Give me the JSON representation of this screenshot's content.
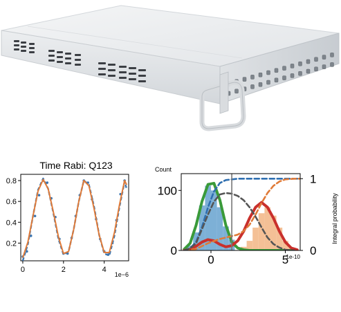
{
  "device": {
    "name": "rack-mount-controller",
    "body_color": "#e9ebed",
    "edge_color": "#c9cdd1"
  },
  "chart_data": [
    {
      "id": "rabi",
      "type": "line",
      "title": "Time Rabi: Q123",
      "xlabel": "",
      "ylabel": "",
      "x_multiplier": "1e−6",
      "xlim": [
        -0.1,
        5.2
      ],
      "ylim": [
        0.03,
        0.86
      ],
      "xticks": [
        "0",
        "2",
        "4"
      ],
      "yticks": [
        "0.2",
        "0.4",
        "0.6",
        "0.8"
      ],
      "grid": false,
      "series": [
        {
          "kind": "points",
          "color": "#3b75af",
          "x": [
            0.0,
            0.2,
            0.4,
            0.6,
            0.8,
            1.0,
            1.2,
            1.4,
            1.6,
            1.8,
            2.0,
            2.2,
            2.4,
            2.6,
            2.8,
            3.0,
            3.2,
            3.4,
            3.6,
            3.8,
            4.0,
            4.2,
            4.4,
            4.6,
            4.8,
            5.0
          ],
          "y": [
            0.07,
            0.12,
            0.27,
            0.46,
            0.66,
            0.8,
            0.78,
            0.63,
            0.45,
            0.24,
            0.1,
            0.1,
            0.25,
            0.46,
            0.66,
            0.8,
            0.78,
            0.62,
            0.43,
            0.24,
            0.12,
            0.09,
            0.2,
            0.42,
            0.67,
            0.8
          ]
        },
        {
          "kind": "dashed",
          "color": "#3b75af",
          "x": [
            0.0,
            0.25,
            0.5,
            0.75,
            1.0,
            1.25,
            1.5,
            1.75,
            2.0,
            2.25,
            2.5,
            2.75,
            3.0,
            3.25,
            3.5,
            3.75,
            4.0,
            4.25,
            4.5,
            4.75,
            5.0,
            5.1
          ],
          "y": [
            0.03,
            0.19,
            0.46,
            0.71,
            0.82,
            0.72,
            0.49,
            0.24,
            0.09,
            0.12,
            0.33,
            0.6,
            0.8,
            0.76,
            0.55,
            0.28,
            0.1,
            0.08,
            0.27,
            0.55,
            0.79,
            0.72
          ]
        },
        {
          "kind": "line",
          "color": "#e07b39",
          "x": [
            0.0,
            0.25,
            0.5,
            0.75,
            1.0,
            1.25,
            1.5,
            1.75,
            2.0,
            2.25,
            2.5,
            2.75,
            3.0,
            3.25,
            3.5,
            3.75,
            4.0,
            4.25,
            4.5,
            4.75,
            5.0,
            5.1
          ],
          "y": [
            0.06,
            0.21,
            0.46,
            0.7,
            0.81,
            0.72,
            0.5,
            0.26,
            0.1,
            0.12,
            0.33,
            0.6,
            0.8,
            0.75,
            0.53,
            0.28,
            0.11,
            0.11,
            0.3,
            0.57,
            0.8,
            0.76
          ]
        }
      ]
    },
    {
      "id": "readout-histogram",
      "type": "area",
      "title": "",
      "ylabel": "Count",
      "ylabel2": "Integral probability",
      "x_multiplier": "1e-10",
      "xlim": [
        -2.0,
        6.0
      ],
      "ylim": [
        0,
        128
      ],
      "ylim2": [
        0,
        1.07
      ],
      "xticks": [
        "0",
        "5"
      ],
      "yticks": [
        "0",
        "100"
      ],
      "yticks2": [
        "0",
        "1"
      ],
      "threshold_x": 1.4,
      "grid": false,
      "series": [
        {
          "kind": "hist",
          "color": "#6fa7d1",
          "x": [
            -1.4,
            -1.0,
            -0.6,
            -0.2,
            0.2,
            0.6,
            1.0,
            1.4
          ],
          "y": [
            8,
            30,
            75,
            108,
            100,
            72,
            40,
            18
          ]
        },
        {
          "kind": "hist",
          "color": "#f3b98b",
          "x": [
            2.2,
            2.6,
            3.0,
            3.4,
            3.8,
            4.2,
            4.6,
            5.0,
            5.4
          ],
          "y": [
            6,
            16,
            38,
            62,
            72,
            58,
            38,
            16,
            5
          ]
        },
        {
          "kind": "fit",
          "color": "#3a9a3a",
          "x": [
            -1.8,
            -1.4,
            -1.0,
            -0.6,
            -0.2,
            0.2,
            0.6,
            1.0,
            1.4,
            1.8,
            2.2,
            2.6,
            3.0,
            3.4,
            3.8,
            4.2,
            4.6,
            5.0,
            5.4,
            5.8
          ],
          "y": [
            2,
            12,
            42,
            82,
            110,
            112,
            84,
            42,
            14,
            4,
            1,
            0,
            0,
            0,
            0,
            0,
            0,
            0,
            0,
            0
          ]
        },
        {
          "kind": "fit",
          "color": "#c9302c",
          "x": [
            -1.8,
            -1.4,
            -1.0,
            -0.6,
            -0.2,
            0.2,
            0.6,
            1.0,
            1.4,
            1.8,
            2.2,
            2.6,
            3.0,
            3.4,
            3.8,
            4.2,
            4.6,
            5.0,
            5.4,
            5.8
          ],
          "y": [
            0,
            2,
            7,
            14,
            18,
            16,
            10,
            6,
            8,
            16,
            32,
            54,
            72,
            80,
            72,
            54,
            32,
            14,
            4,
            1
          ]
        },
        {
          "kind": "cumulative",
          "color": "#2f6fb0",
          "axis": "right",
          "x": [
            -1.8,
            -1.4,
            -1.0,
            -0.6,
            -0.2,
            0.2,
            0.6,
            1.0,
            1.4,
            1.8,
            2.4,
            3.0,
            4.0,
            5.0,
            6.0
          ],
          "y": [
            0.0,
            0.03,
            0.12,
            0.33,
            0.6,
            0.82,
            0.94,
            0.98,
            0.99,
            1.0,
            1.0,
            1.0,
            1.0,
            1.0,
            1.0
          ]
        },
        {
          "kind": "cumulative",
          "color": "#e07b39",
          "axis": "right",
          "x": [
            -1.8,
            -1.0,
            -0.2,
            0.6,
            1.4,
            1.8,
            2.2,
            2.6,
            3.0,
            3.4,
            3.8,
            4.2,
            4.6,
            5.0,
            5.6,
            6.0
          ],
          "y": [
            0.0,
            0.02,
            0.1,
            0.16,
            0.2,
            0.22,
            0.27,
            0.36,
            0.5,
            0.66,
            0.8,
            0.9,
            0.96,
            0.99,
            1.0,
            1.0
          ]
        },
        {
          "kind": "difference",
          "color": "#555555",
          "axis": "right",
          "x": [
            -1.8,
            -1.4,
            -1.0,
            -0.6,
            -0.2,
            0.2,
            0.6,
            1.0,
            1.4,
            1.8,
            2.2,
            2.6,
            3.0,
            3.4,
            3.8,
            4.2,
            4.6,
            5.0,
            5.6
          ],
          "y": [
            0.0,
            0.03,
            0.1,
            0.3,
            0.5,
            0.68,
            0.78,
            0.8,
            0.79,
            0.76,
            0.7,
            0.6,
            0.47,
            0.32,
            0.18,
            0.09,
            0.04,
            0.01,
            0.0
          ]
        }
      ]
    }
  ]
}
